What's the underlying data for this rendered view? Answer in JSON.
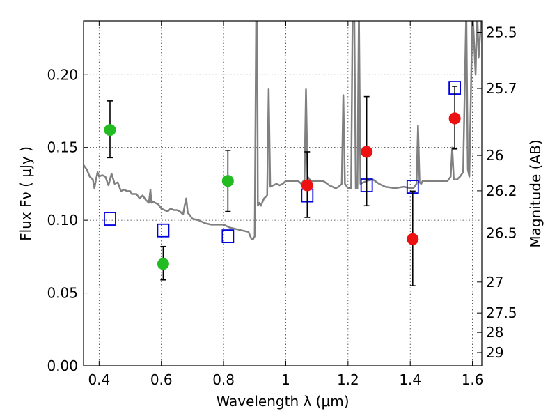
{
  "chart_data": {
    "type": "scatter",
    "xlabel": "Wavelength  λ (μm)",
    "ylabel": "Flux  Fν  ( μJy )",
    "ylabel_right": "Magnitude (AB)",
    "xlim": [
      0.35,
      1.63
    ],
    "ylim": [
      0.0,
      0.237
    ],
    "grid": true,
    "x_ticks": [
      0.4,
      0.6,
      0.8,
      1.0,
      1.2,
      1.4,
      1.6
    ],
    "x_tick_labels": [
      "0.4",
      "0.6",
      "0.8",
      "1",
      "1.2",
      "1.4",
      "1.6"
    ],
    "y_ticks": [
      0.0,
      0.05,
      0.1,
      0.15,
      0.2
    ],
    "y_tick_labels": [
      "0.00",
      "0.05",
      "0.10",
      "0.15",
      "0.20"
    ],
    "right_ticks": [
      {
        "label": "25.5",
        "mag": 25.5
      },
      {
        "label": "25.7",
        "mag": 25.7
      },
      {
        "label": "26",
        "mag": 26.0
      },
      {
        "label": "26.2",
        "mag": 26.2
      },
      {
        "label": "26.5",
        "mag": 26.5
      },
      {
        "label": "27",
        "mag": 27.0
      },
      {
        "label": "27.5",
        "mag": 27.5
      },
      {
        "label": "28",
        "mag": 28.0
      },
      {
        "label": "29",
        "mag": 29.0
      }
    ],
    "series": [
      {
        "kind": "points-with-errors",
        "color": "#22bb22",
        "points": [
          {
            "x": 0.435,
            "y": 0.162,
            "lo": 0.143,
            "hi": 0.182
          },
          {
            "x": 0.606,
            "y": 0.07,
            "lo": 0.059,
            "hi": 0.082
          },
          {
            "x": 0.814,
            "y": 0.127,
            "lo": 0.106,
            "hi": 0.148
          }
        ]
      },
      {
        "kind": "points-with-errors",
        "color": "#ee1111",
        "points": [
          {
            "x": 1.069,
            "y": 0.124,
            "lo": 0.102,
            "hi": 0.147
          },
          {
            "x": 1.26,
            "y": 0.147,
            "lo": 0.11,
            "hi": 0.185
          },
          {
            "x": 1.408,
            "y": 0.087,
            "lo": 0.055,
            "hi": 0.12
          },
          {
            "x": 1.543,
            "y": 0.17,
            "lo": 0.149,
            "hi": 0.192
          }
        ]
      },
      {
        "kind": "open-squares",
        "color": "#0000dd",
        "points": [
          {
            "x": 0.435,
            "y": 0.101
          },
          {
            "x": 0.606,
            "y": 0.093
          },
          {
            "x": 0.814,
            "y": 0.089
          },
          {
            "x": 1.069,
            "y": 0.117
          },
          {
            "x": 1.26,
            "y": 0.124
          },
          {
            "x": 1.408,
            "y": 0.123
          },
          {
            "x": 1.543,
            "y": 0.191
          }
        ]
      },
      {
        "kind": "line",
        "color": "#808080",
        "x": [
          0.35,
          0.36,
          0.37,
          0.38,
          0.385,
          0.39,
          0.395,
          0.4,
          0.41,
          0.42,
          0.43,
          0.44,
          0.45,
          0.46,
          0.47,
          0.48,
          0.49,
          0.5,
          0.505,
          0.51,
          0.52,
          0.53,
          0.54,
          0.55,
          0.56,
          0.565,
          0.568,
          0.572,
          0.58,
          0.59,
          0.6,
          0.61,
          0.62,
          0.63,
          0.64,
          0.65,
          0.66,
          0.67,
          0.675,
          0.68,
          0.685,
          0.69,
          0.7,
          0.72,
          0.74,
          0.76,
          0.78,
          0.8,
          0.82,
          0.84,
          0.86,
          0.88,
          0.89,
          0.895,
          0.9,
          0.902,
          0.905,
          0.908,
          0.91,
          0.915,
          0.92,
          0.93,
          0.94,
          0.945,
          0.95,
          0.96,
          0.97,
          0.98,
          0.99,
          1.0,
          1.02,
          1.04,
          1.05,
          1.06,
          1.065,
          1.07,
          1.08,
          1.1,
          1.12,
          1.14,
          1.16,
          1.17,
          1.18,
          1.185,
          1.19,
          1.2,
          1.21,
          1.215,
          1.22,
          1.225,
          1.23,
          1.235,
          1.24,
          1.25,
          1.26,
          1.28,
          1.3,
          1.32,
          1.35,
          1.38,
          1.4,
          1.41,
          1.42,
          1.425,
          1.43,
          1.435,
          1.44,
          1.46,
          1.48,
          1.5,
          1.52,
          1.53,
          1.535,
          1.54,
          1.545,
          1.55,
          1.56,
          1.57,
          1.58,
          1.585,
          1.59,
          1.6,
          1.61,
          1.615,
          1.62,
          1.63
        ],
        "y": [
          0.138,
          0.135,
          0.13,
          0.128,
          0.122,
          0.128,
          0.133,
          0.13,
          0.131,
          0.13,
          0.124,
          0.132,
          0.125,
          0.126,
          0.12,
          0.121,
          0.12,
          0.12,
          0.118,
          0.118,
          0.118,
          0.115,
          0.117,
          0.114,
          0.112,
          0.121,
          0.112,
          0.113,
          0.112,
          0.111,
          0.108,
          0.107,
          0.106,
          0.108,
          0.107,
          0.107,
          0.106,
          0.104,
          0.11,
          0.115,
          0.105,
          0.104,
          0.101,
          0.1,
          0.098,
          0.097,
          0.097,
          0.097,
          0.095,
          0.094,
          0.093,
          0.092,
          0.087,
          0.087,
          0.089,
          0.15,
          0.245,
          0.24,
          0.11,
          0.112,
          0.11,
          0.115,
          0.117,
          0.19,
          0.123,
          0.124,
          0.125,
          0.124,
          0.125,
          0.127,
          0.127,
          0.127,
          0.125,
          0.128,
          0.19,
          0.13,
          0.127,
          0.127,
          0.127,
          0.124,
          0.122,
          0.123,
          0.125,
          0.186,
          0.125,
          0.122,
          0.122,
          0.245,
          0.245,
          0.122,
          0.122,
          0.245,
          0.125,
          0.126,
          0.127,
          0.128,
          0.125,
          0.123,
          0.122,
          0.123,
          0.122,
          0.122,
          0.125,
          0.165,
          0.126,
          0.125,
          0.127,
          0.127,
          0.127,
          0.127,
          0.127,
          0.13,
          0.15,
          0.128,
          0.128,
          0.128,
          0.13,
          0.133,
          0.245,
          0.135,
          0.13,
          0.245,
          0.2,
          0.245,
          0.212,
          0.245
        ]
      }
    ]
  }
}
